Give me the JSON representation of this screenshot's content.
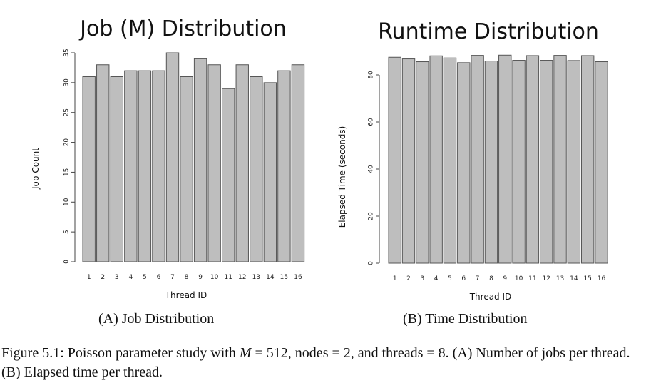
{
  "chart_data": [
    {
      "type": "bar",
      "title": "Job (M) Distribution",
      "xlabel": "Thread ID",
      "ylabel": "Job Count",
      "categories": [
        "1",
        "2",
        "3",
        "4",
        "5",
        "6",
        "7",
        "8",
        "9",
        "10",
        "11",
        "12",
        "13",
        "14",
        "15",
        "16"
      ],
      "values": [
        31,
        33,
        31,
        32,
        32,
        32,
        35,
        31,
        34,
        33,
        29,
        33,
        31,
        30,
        32,
        33
      ],
      "ylim": [
        0,
        35
      ],
      "yticks": [
        0,
        5,
        10,
        15,
        20,
        25,
        30,
        35
      ],
      "grid": false
    },
    {
      "type": "bar",
      "title": "Runtime Distribution",
      "xlabel": "Thread ID",
      "ylabel": "Elapsed Time (seconds)",
      "categories": [
        "1",
        "2",
        "3",
        "4",
        "5",
        "6",
        "7",
        "8",
        "9",
        "10",
        "11",
        "12",
        "13",
        "14",
        "15",
        "16"
      ],
      "values": [
        87.5,
        86.8,
        85.6,
        88.1,
        87.2,
        85.2,
        88.3,
        85.9,
        88.4,
        86.2,
        88.2,
        86.2,
        88.3,
        86.1,
        88.2,
        85.6
      ],
      "ylim": [
        0,
        90
      ],
      "yticks": [
        0,
        20,
        40,
        60,
        80
      ],
      "grid": false
    }
  ],
  "subcaptions": {
    "a": "(A) Job Distribution",
    "b": "(B) Time Distribution"
  },
  "caption": {
    "prefix": "Figure 5.1: Poisson parameter study with ",
    "m_symbol": "M",
    "m_value": " = 512, nodes = 2, and threads = 8. (A) Number of jobs per thread. (B) Elapsed time per thread."
  }
}
